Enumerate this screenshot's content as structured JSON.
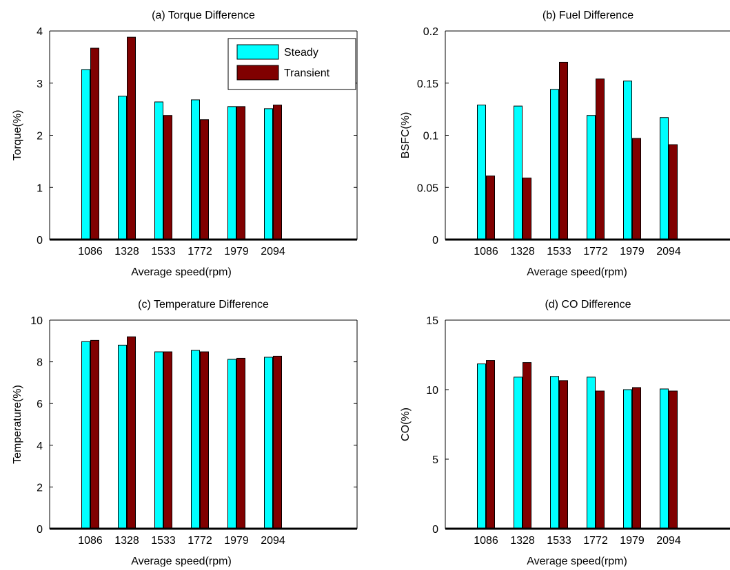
{
  "colors": {
    "steady": "#00ffff",
    "transient": "#800000",
    "axis": "#000000",
    "background": "#ffffff"
  },
  "legend": {
    "placement": "top-right (panel a)",
    "labels": [
      "Steady",
      "Transient"
    ]
  },
  "chart_data": [
    {
      "type": "bar",
      "title": "(a) Torque Difference",
      "xlabel": "Average speed(rpm)",
      "ylabel": "Torque(%)",
      "categories": [
        "1086",
        "1328",
        "1533",
        "1772",
        "1979",
        "2094"
      ],
      "ylim": [
        0,
        4
      ],
      "yticks": [
        0,
        1,
        2,
        3,
        4
      ],
      "ytick_labels": [
        "0",
        "1",
        "2",
        "3",
        "4"
      ],
      "series": [
        {
          "name": "Steady",
          "values": [
            3.26,
            2.75,
            2.64,
            2.68,
            2.55,
            2.51
          ]
        },
        {
          "name": "Transient",
          "values": [
            3.67,
            3.88,
            2.38,
            2.3,
            2.55,
            2.58
          ]
        }
      ],
      "legend": true
    },
    {
      "type": "bar",
      "title": "(b) Fuel Difference",
      "xlabel": "Average speed(rpm)",
      "ylabel": "BSFC(%)",
      "categories": [
        "1086",
        "1328",
        "1533",
        "1772",
        "1979",
        "2094"
      ],
      "ylim": [
        0,
        0.2
      ],
      "yticks": [
        0,
        0.05,
        0.1,
        0.15,
        0.2
      ],
      "ytick_labels": [
        "0",
        "0.05",
        "0.1",
        "0.15",
        "0.2"
      ],
      "series": [
        {
          "name": "Steady",
          "values": [
            0.129,
            0.128,
            0.144,
            0.119,
            0.152,
            0.117
          ]
        },
        {
          "name": "Transient",
          "values": [
            0.061,
            0.059,
            0.17,
            0.154,
            0.097,
            0.091
          ]
        }
      ],
      "legend": false
    },
    {
      "type": "bar",
      "title": "(c) Temperature Difference",
      "xlabel": "Average speed(rpm)",
      "ylabel": "Temperature(%)",
      "categories": [
        "1086",
        "1328",
        "1533",
        "1772",
        "1979",
        "2094"
      ],
      "ylim": [
        0,
        10
      ],
      "yticks": [
        0,
        2,
        4,
        6,
        8,
        10
      ],
      "ytick_labels": [
        "0",
        "2",
        "4",
        "6",
        "8",
        "10"
      ],
      "series": [
        {
          "name": "Steady",
          "values": [
            8.97,
            8.8,
            8.48,
            8.55,
            8.12,
            8.22
          ]
        },
        {
          "name": "Transient",
          "values": [
            9.03,
            9.2,
            8.48,
            8.48,
            8.17,
            8.27
          ]
        }
      ],
      "legend": false
    },
    {
      "type": "bar",
      "title": "(d) CO Difference",
      "xlabel": "Average speed(rpm)",
      "ylabel": "CO(%)",
      "categories": [
        "1086",
        "1328",
        "1533",
        "1772",
        "1979",
        "2094"
      ],
      "ylim": [
        0,
        15
      ],
      "yticks": [
        0,
        5,
        10,
        15
      ],
      "ytick_labels": [
        "0",
        "5",
        "10",
        "15"
      ],
      "series": [
        {
          "name": "Steady",
          "values": [
            11.85,
            10.9,
            10.95,
            10.9,
            10.0,
            10.05
          ]
        },
        {
          "name": "Transient",
          "values": [
            12.1,
            11.95,
            10.65,
            9.9,
            10.15,
            9.9
          ]
        }
      ],
      "legend": false
    }
  ]
}
